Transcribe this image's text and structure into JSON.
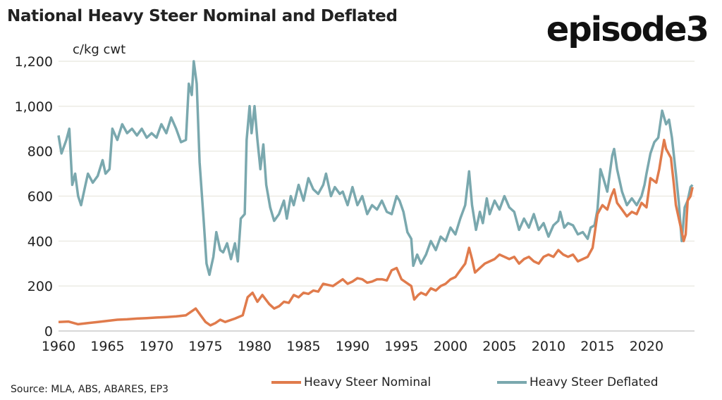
{
  "chart_data": {
    "type": "line",
    "title": "National Heavy Steer Nominal and Deflated",
    "ylabel": "c/kg cwt",
    "xlim": [
      1960,
      2024.9
    ],
    "ylim": [
      0,
      1200
    ],
    "xticks": [
      1960,
      1965,
      1970,
      1975,
      1980,
      1985,
      1990,
      1995,
      2000,
      2005,
      2010,
      2015,
      2020
    ],
    "yticks": [
      0,
      200,
      400,
      600,
      800,
      1000,
      1200
    ],
    "ytick_labels": [
      "0",
      "200",
      "400",
      "600",
      "800",
      "1,000",
      "1,200"
    ],
    "grid": true,
    "legend_position": "bottom",
    "series": [
      {
        "name": "Heavy Steer Nominal",
        "color": "#e07b4c",
        "points": [
          [
            1960,
            40
          ],
          [
            1961,
            42
          ],
          [
            1962,
            30
          ],
          [
            1963,
            35
          ],
          [
            1964,
            40
          ],
          [
            1965,
            45
          ],
          [
            1966,
            50
          ],
          [
            1967,
            52
          ],
          [
            1968,
            55
          ],
          [
            1969,
            57
          ],
          [
            1970,
            60
          ],
          [
            1971,
            62
          ],
          [
            1972,
            65
          ],
          [
            1973,
            70
          ],
          [
            1973.5,
            85
          ],
          [
            1974,
            100
          ],
          [
            1974.5,
            70
          ],
          [
            1975,
            40
          ],
          [
            1975.5,
            25
          ],
          [
            1976,
            35
          ],
          [
            1976.5,
            50
          ],
          [
            1977,
            40
          ],
          [
            1978,
            55
          ],
          [
            1978.8,
            70
          ],
          [
            1979.3,
            150
          ],
          [
            1979.8,
            170
          ],
          [
            1980.3,
            130
          ],
          [
            1980.8,
            160
          ],
          [
            1981.5,
            120
          ],
          [
            1982,
            100
          ],
          [
            1982.5,
            110
          ],
          [
            1983,
            130
          ],
          [
            1983.5,
            125
          ],
          [
            1984,
            160
          ],
          [
            1984.5,
            150
          ],
          [
            1985,
            170
          ],
          [
            1985.5,
            165
          ],
          [
            1986,
            180
          ],
          [
            1986.5,
            175
          ],
          [
            1987,
            210
          ],
          [
            1987.5,
            205
          ],
          [
            1988,
            200
          ],
          [
            1988.5,
            215
          ],
          [
            1989,
            230
          ],
          [
            1989.5,
            210
          ],
          [
            1990,
            220
          ],
          [
            1990.5,
            235
          ],
          [
            1991,
            230
          ],
          [
            1991.5,
            215
          ],
          [
            1992,
            220
          ],
          [
            1992.5,
            230
          ],
          [
            1993,
            230
          ],
          [
            1993.5,
            225
          ],
          [
            1994,
            270
          ],
          [
            1994.5,
            280
          ],
          [
            1995,
            230
          ],
          [
            1995.5,
            215
          ],
          [
            1996,
            200
          ],
          [
            1996.3,
            140
          ],
          [
            1996.7,
            160
          ],
          [
            1997,
            170
          ],
          [
            1997.5,
            160
          ],
          [
            1998,
            190
          ],
          [
            1998.5,
            180
          ],
          [
            1999,
            200
          ],
          [
            1999.5,
            210
          ],
          [
            2000,
            230
          ],
          [
            2000.5,
            240
          ],
          [
            2001,
            270
          ],
          [
            2001.5,
            300
          ],
          [
            2001.9,
            370
          ],
          [
            2002.2,
            320
          ],
          [
            2002.5,
            260
          ],
          [
            2003,
            280
          ],
          [
            2003.5,
            300
          ],
          [
            2004,
            310
          ],
          [
            2004.5,
            320
          ],
          [
            2005,
            340
          ],
          [
            2005.5,
            330
          ],
          [
            2006,
            320
          ],
          [
            2006.5,
            330
          ],
          [
            2007,
            300
          ],
          [
            2007.5,
            320
          ],
          [
            2008,
            330
          ],
          [
            2008.5,
            310
          ],
          [
            2009,
            300
          ],
          [
            2009.5,
            330
          ],
          [
            2010,
            340
          ],
          [
            2010.5,
            330
          ],
          [
            2011,
            360
          ],
          [
            2011.5,
            340
          ],
          [
            2012,
            330
          ],
          [
            2012.5,
            340
          ],
          [
            2013,
            310
          ],
          [
            2013.5,
            320
          ],
          [
            2014,
            330
          ],
          [
            2014.5,
            370
          ],
          [
            2015,
            520
          ],
          [
            2015.5,
            560
          ],
          [
            2016,
            540
          ],
          [
            2016.4,
            600
          ],
          [
            2016.7,
            630
          ],
          [
            2017,
            570
          ],
          [
            2017.5,
            540
          ],
          [
            2018,
            510
          ],
          [
            2018.5,
            530
          ],
          [
            2019,
            520
          ],
          [
            2019.5,
            570
          ],
          [
            2020,
            550
          ],
          [
            2020.4,
            680
          ],
          [
            2021,
            660
          ],
          [
            2021.3,
            720
          ],
          [
            2021.6,
            800
          ],
          [
            2021.8,
            850
          ],
          [
            2022,
            810
          ],
          [
            2022.5,
            770
          ],
          [
            2022.8,
            650
          ],
          [
            2023,
            560
          ],
          [
            2023.4,
            480
          ],
          [
            2023.8,
            400
          ],
          [
            2024,
            430
          ],
          [
            2024.2,
            580
          ],
          [
            2024.5,
            600
          ],
          [
            2024.7,
            640
          ]
        ]
      },
      {
        "name": "Heavy Steer Deflated",
        "color": "#7aa8ae",
        "points": [
          [
            1960,
            870
          ],
          [
            1960.3,
            790
          ],
          [
            1960.8,
            850
          ],
          [
            1961.1,
            900
          ],
          [
            1961.4,
            650
          ],
          [
            1961.7,
            700
          ],
          [
            1962,
            600
          ],
          [
            1962.3,
            560
          ],
          [
            1962.7,
            640
          ],
          [
            1963,
            700
          ],
          [
            1963.5,
            660
          ],
          [
            1964,
            690
          ],
          [
            1964.5,
            760
          ],
          [
            1964.8,
            700
          ],
          [
            1965.2,
            720
          ],
          [
            1965.5,
            900
          ],
          [
            1966,
            850
          ],
          [
            1966.5,
            920
          ],
          [
            1967,
            880
          ],
          [
            1967.5,
            900
          ],
          [
            1968,
            870
          ],
          [
            1968.5,
            900
          ],
          [
            1969,
            860
          ],
          [
            1969.5,
            880
          ],
          [
            1970,
            860
          ],
          [
            1970.5,
            920
          ],
          [
            1971,
            880
          ],
          [
            1971.5,
            950
          ],
          [
            1972,
            900
          ],
          [
            1972.5,
            840
          ],
          [
            1973,
            850
          ],
          [
            1973.3,
            1100
          ],
          [
            1973.6,
            1050
          ],
          [
            1973.8,
            1200
          ],
          [
            1974.1,
            1100
          ],
          [
            1974.4,
            750
          ],
          [
            1974.8,
            500
          ],
          [
            1975.1,
            300
          ],
          [
            1975.4,
            250
          ],
          [
            1975.8,
            330
          ],
          [
            1976.1,
            440
          ],
          [
            1976.5,
            360
          ],
          [
            1976.8,
            350
          ],
          [
            1977.2,
            390
          ],
          [
            1977.6,
            320
          ],
          [
            1978,
            390
          ],
          [
            1978.3,
            310
          ],
          [
            1978.6,
            500
          ],
          [
            1979,
            520
          ],
          [
            1979.2,
            850
          ],
          [
            1979.5,
            1000
          ],
          [
            1979.7,
            880
          ],
          [
            1980,
            1000
          ],
          [
            1980.3,
            850
          ],
          [
            1980.6,
            720
          ],
          [
            1980.9,
            830
          ],
          [
            1981.2,
            650
          ],
          [
            1981.6,
            550
          ],
          [
            1982,
            490
          ],
          [
            1982.5,
            520
          ],
          [
            1983,
            580
          ],
          [
            1983.3,
            500
          ],
          [
            1983.7,
            600
          ],
          [
            1984,
            560
          ],
          [
            1984.5,
            650
          ],
          [
            1985,
            580
          ],
          [
            1985.5,
            680
          ],
          [
            1986,
            630
          ],
          [
            1986.5,
            610
          ],
          [
            1987,
            650
          ],
          [
            1987.3,
            700
          ],
          [
            1987.8,
            600
          ],
          [
            1988.2,
            640
          ],
          [
            1988.7,
            610
          ],
          [
            1989,
            620
          ],
          [
            1989.5,
            560
          ],
          [
            1990,
            640
          ],
          [
            1990.5,
            560
          ],
          [
            1991,
            600
          ],
          [
            1991.5,
            520
          ],
          [
            1992,
            560
          ],
          [
            1992.5,
            540
          ],
          [
            1993,
            580
          ],
          [
            1993.5,
            530
          ],
          [
            1994,
            520
          ],
          [
            1994.5,
            600
          ],
          [
            1994.8,
            580
          ],
          [
            1995.2,
            530
          ],
          [
            1995.6,
            440
          ],
          [
            1996,
            410
          ],
          [
            1996.2,
            290
          ],
          [
            1996.6,
            340
          ],
          [
            1997,
            300
          ],
          [
            1997.5,
            340
          ],
          [
            1998,
            400
          ],
          [
            1998.5,
            360
          ],
          [
            1999,
            420
          ],
          [
            1999.5,
            400
          ],
          [
            2000,
            460
          ],
          [
            2000.5,
            430
          ],
          [
            2001,
            500
          ],
          [
            2001.5,
            560
          ],
          [
            2001.9,
            710
          ],
          [
            2002.2,
            560
          ],
          [
            2002.6,
            450
          ],
          [
            2003,
            530
          ],
          [
            2003.3,
            480
          ],
          [
            2003.7,
            590
          ],
          [
            2004,
            520
          ],
          [
            2004.5,
            580
          ],
          [
            2005,
            540
          ],
          [
            2005.5,
            600
          ],
          [
            2006,
            550
          ],
          [
            2006.5,
            530
          ],
          [
            2007,
            450
          ],
          [
            2007.5,
            500
          ],
          [
            2008,
            460
          ],
          [
            2008.5,
            520
          ],
          [
            2009,
            450
          ],
          [
            2009.5,
            480
          ],
          [
            2010,
            420
          ],
          [
            2010.5,
            470
          ],
          [
            2011,
            490
          ],
          [
            2011.2,
            530
          ],
          [
            2011.6,
            460
          ],
          [
            2012,
            480
          ],
          [
            2012.5,
            470
          ],
          [
            2013,
            430
          ],
          [
            2013.5,
            440
          ],
          [
            2014,
            410
          ],
          [
            2014.3,
            460
          ],
          [
            2014.7,
            470
          ],
          [
            2015,
            540
          ],
          [
            2015.3,
            720
          ],
          [
            2015.6,
            680
          ],
          [
            2016,
            620
          ],
          [
            2016.5,
            780
          ],
          [
            2016.7,
            810
          ],
          [
            2017,
            720
          ],
          [
            2017.5,
            620
          ],
          [
            2018,
            560
          ],
          [
            2018.5,
            590
          ],
          [
            2019,
            560
          ],
          [
            2019.5,
            600
          ],
          [
            2019.8,
            650
          ],
          [
            2020,
            700
          ],
          [
            2020.4,
            790
          ],
          [
            2020.8,
            840
          ],
          [
            2021.2,
            860
          ],
          [
            2021.6,
            980
          ],
          [
            2022,
            920
          ],
          [
            2022.3,
            940
          ],
          [
            2022.6,
            860
          ],
          [
            2023,
            700
          ],
          [
            2023.3,
            570
          ],
          [
            2023.6,
            400
          ],
          [
            2023.9,
            550
          ],
          [
            2024.2,
            580
          ],
          [
            2024.5,
            640
          ],
          [
            2024.7,
            650
          ]
        ]
      }
    ],
    "source": "Source: MLA, ABS, ABARES, EP3"
  },
  "brand": {
    "logo_text": "episode3"
  }
}
